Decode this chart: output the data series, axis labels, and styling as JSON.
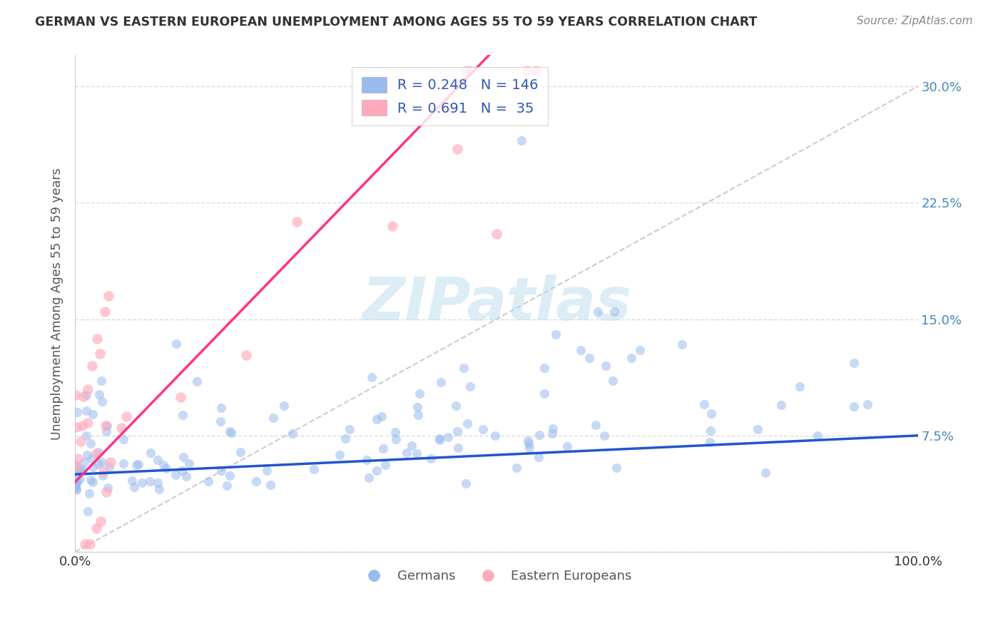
{
  "title": "GERMAN VS EASTERN EUROPEAN UNEMPLOYMENT AMONG AGES 55 TO 59 YEARS CORRELATION CHART",
  "source": "Source: ZipAtlas.com",
  "ylabel": "Unemployment Among Ages 55 to 59 years",
  "xlim": [
    0.0,
    1.0
  ],
  "ylim": [
    0.0,
    0.32
  ],
  "yticks": [
    0.0,
    0.075,
    0.15,
    0.225,
    0.3
  ],
  "ytick_labels": [
    "",
    "7.5%",
    "15.0%",
    "22.5%",
    "30.0%"
  ],
  "xticks": [
    0.0,
    0.25,
    0.5,
    0.75,
    1.0
  ],
  "xtick_labels": [
    "0.0%",
    "",
    "",
    "",
    "100.0%"
  ],
  "legend_R1": "0.248",
  "legend_N1": "146",
  "legend_R2": "0.691",
  "legend_N2": "35",
  "german_color": "#99BBEE",
  "eastern_color": "#FFAABB",
  "line_german_color": "#2255CC",
  "line_eastern_color": "#FF3388",
  "ref_line_color": "#CCCCCC",
  "background_color": "#FFFFFF",
  "watermark_color": "#BBDDEE",
  "title_color": "#333333",
  "source_color": "#888888",
  "label_color": "#555555",
  "tick_color_right": "#4488BB"
}
